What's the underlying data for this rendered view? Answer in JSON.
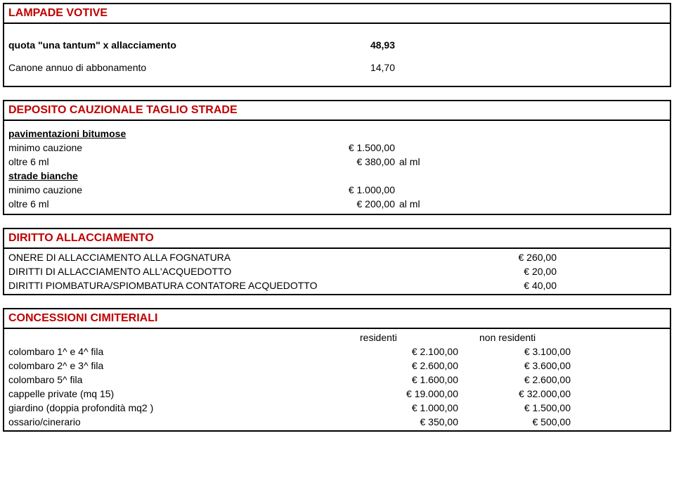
{
  "colors": {
    "title": "#c00000",
    "text": "#000000",
    "border": "#000000",
    "background": "#ffffff"
  },
  "lampade": {
    "title": "LAMPADE VOTIVE",
    "rows": [
      {
        "label": "quota \"una tantum\" x allacciamento",
        "value": "48,93",
        "bold": true
      },
      {
        "label": "Canone annuo di abbonamento",
        "value": "14,70",
        "bold": false
      }
    ]
  },
  "deposito": {
    "title": "DEPOSITO CAUZIONALE TAGLIO STRADE",
    "groups": [
      {
        "header": "pavimentazioni bitumose",
        "rows": [
          {
            "label": "minimo cauzione",
            "value": "€ 1.500,00",
            "suffix": ""
          },
          {
            "label": "oltre 6 ml",
            "value": "€ 380,00",
            "suffix": "al ml"
          }
        ]
      },
      {
        "header": "strade bianche",
        "rows": [
          {
            "label": "minimo cauzione",
            "value": "€ 1.000,00",
            "suffix": ""
          },
          {
            "label": "oltre 6 ml",
            "value": "€ 200,00",
            "suffix": "al ml"
          }
        ]
      }
    ]
  },
  "diritto": {
    "title": "DIRITTO ALLACCIAMENTO",
    "rows": [
      {
        "label": "ONERE DI ALLACCIAMENTO ALLA FOGNATURA",
        "value": "€ 260,00"
      },
      {
        "label": "DIRITTI DI ALLACCIAMENTO ALL'ACQUEDOTTO",
        "value": "€ 20,00"
      },
      {
        "label": "DIRITTI PIOMBATURA/SPIOMBATURA CONTATORE ACQUEDOTTO",
        "value": "€ 40,00"
      }
    ]
  },
  "cimiteriali": {
    "title": "CONCESSIONI CIMITERIALI",
    "headers": {
      "col2": "residenti",
      "col3": "non residenti"
    },
    "rows": [
      {
        "label": "colombaro  1^ e 4^ fila",
        "v1": "€ 2.100,00",
        "v2": "€ 3.100,00"
      },
      {
        "label": "colombaro  2^ e 3^ fila",
        "v1": "€ 2.600,00",
        "v2": "€ 3.600,00"
      },
      {
        "label": "colombaro 5^ fila",
        "v1": "€ 1.600,00",
        "v2": "€ 2.600,00"
      },
      {
        "label": "cappelle private (mq 15)",
        "v1": "€ 19.000,00",
        "v2": "€ 32.000,00"
      },
      {
        "label": "giardino (doppia profondità mq2 )",
        "v1": "€ 1.000,00",
        "v2": "€ 1.500,00"
      },
      {
        "label": "ossario/cinerario",
        "v1": "€ 350,00",
        "v2": "€ 500,00"
      }
    ]
  }
}
